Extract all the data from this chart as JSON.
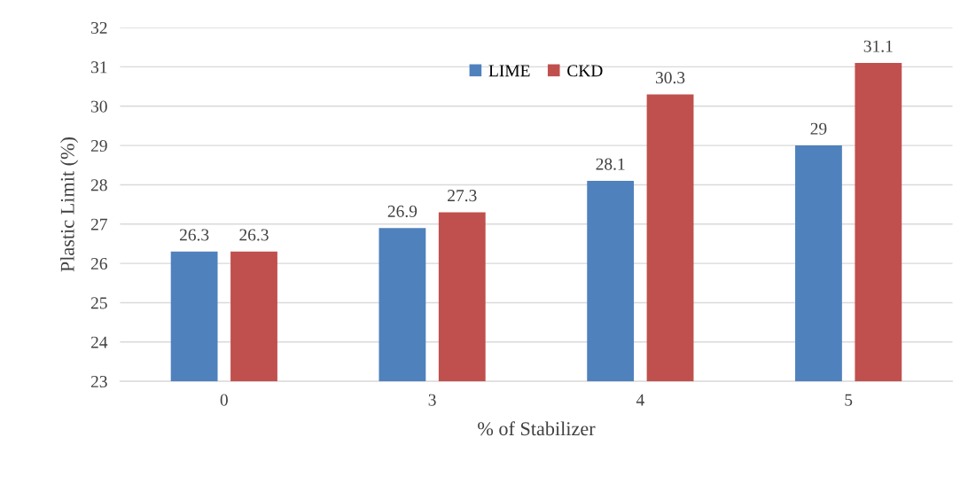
{
  "chart_data": {
    "type": "bar",
    "xlabel": "% of Stabilizer",
    "ylabel": "Plastic Limit (%)",
    "categories": [
      "0",
      "3",
      "4",
      "5"
    ],
    "series": [
      {
        "name": "LIME",
        "color": "#4f81bd",
        "values": [
          26.3,
          26.9,
          28.1,
          29
        ]
      },
      {
        "name": "CKD",
        "color": "#c0504d",
        "values": [
          26.3,
          27.3,
          30.3,
          31.1
        ]
      }
    ],
    "ylim": [
      23,
      32
    ],
    "yticks": [
      23,
      24,
      25,
      26,
      27,
      28,
      29,
      30,
      31,
      32
    ],
    "grid": "y",
    "legend": "top",
    "data_labels": true
  }
}
